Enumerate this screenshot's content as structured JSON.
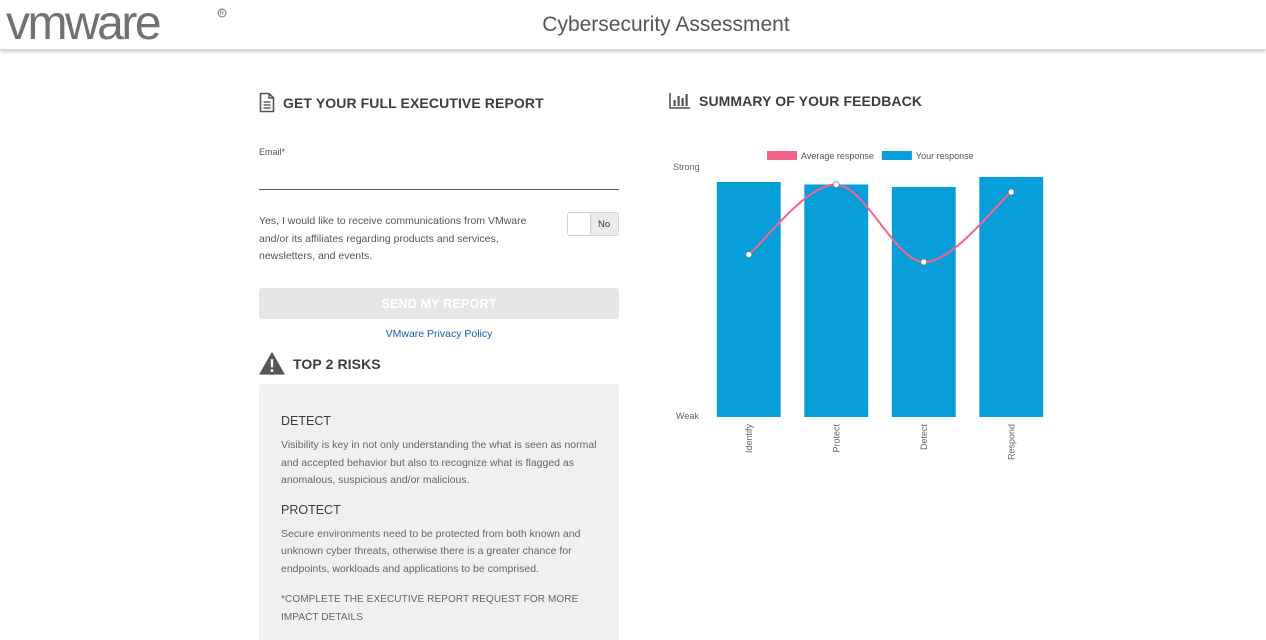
{
  "header": {
    "logo_text": "vmware",
    "title": "Cybersecurity Assessment"
  },
  "report": {
    "heading": "GET YOUR FULL EXECUTIVE REPORT",
    "email_label": "Email*",
    "email_value": "",
    "consent_text": "Yes, I would like to receive communications from VMware and/or its affiliates regarding products and services, newsletters, and events.",
    "toggle_label": "No",
    "toggle_state": "off",
    "send_label": "SEND MY REPORT",
    "privacy_link": "VMware Privacy Policy"
  },
  "risks": {
    "heading": "TOP 2 RISKS",
    "items": [
      {
        "title": "DETECT",
        "description": "Visibility is key in not only understanding the what is seen as normal and accepted behavior but also to recognize what is flagged as anomalous, suspicious and/or malicious."
      },
      {
        "title": "PROTECT",
        "description": "Secure environments need to be protected from both known and unknown cyber threats, otherwise there is a greater chance for endpoints, workloads and applications to be comprised."
      }
    ],
    "note": "*COMPLETE THE EXECUTIVE REPORT REQUEST FOR MORE IMPACT DETAILS"
  },
  "summary": {
    "heading": "SUMMARY OF YOUR FEEDBACK"
  },
  "chart_data": {
    "type": "bar",
    "categories": [
      "Identify",
      "Protect",
      "Detect",
      "Respond"
    ],
    "series": [
      {
        "name": "Your response",
        "type": "bar",
        "color": "#079ed9",
        "values": [
          0.94,
          0.93,
          0.92,
          0.96
        ]
      },
      {
        "name": "Average response",
        "type": "line",
        "color": "#f5658b",
        "values": [
          0.65,
          0.93,
          0.62,
          0.9
        ]
      }
    ],
    "ylim": [
      0,
      1
    ],
    "y_tick_labels": {
      "top": "Strong",
      "bottom": "Weak"
    },
    "legend": "top",
    "grid": false
  },
  "colors": {
    "bar": "#079ed9",
    "line": "#f5658b",
    "link": "#1a5fa0",
    "button_disabled": "#e4e6e8"
  }
}
